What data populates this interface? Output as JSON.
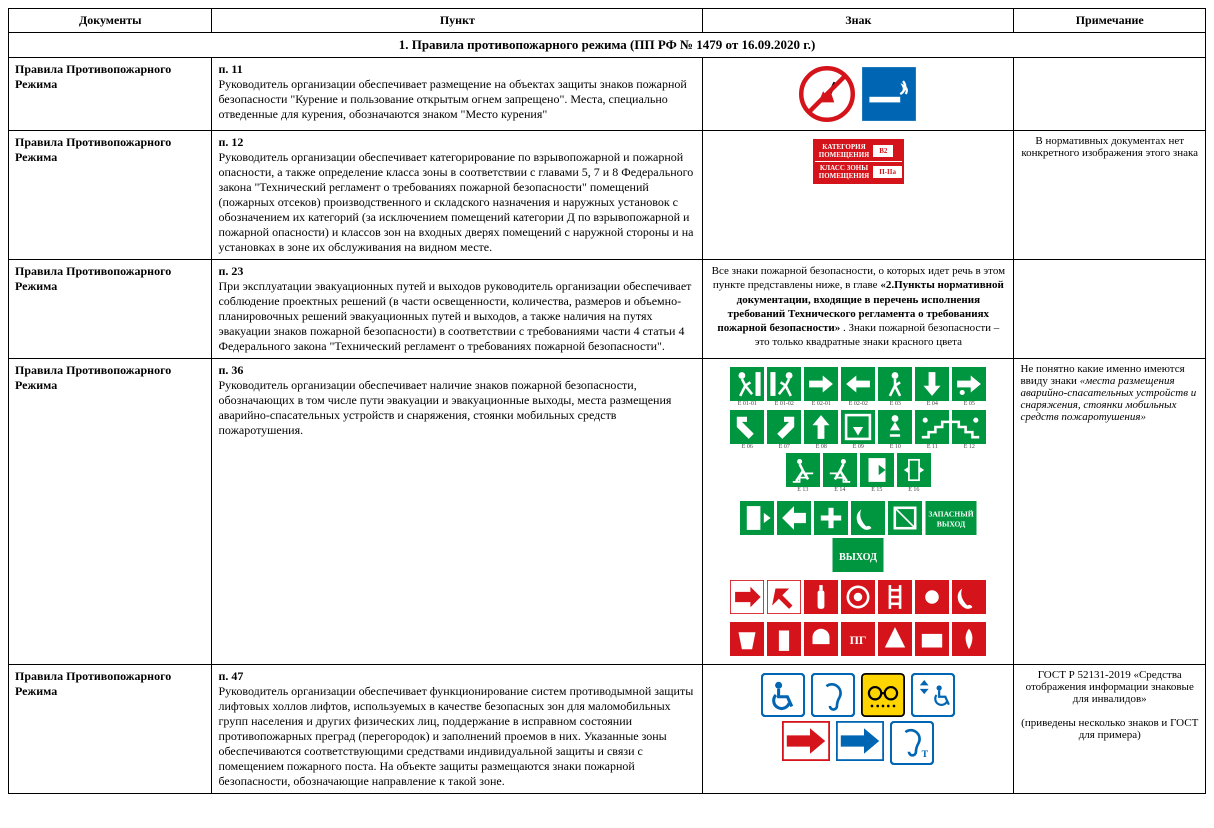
{
  "headers": {
    "documents": "Документы",
    "punkt": "Пункт",
    "znak": "Знак",
    "note": "Примечание"
  },
  "section_title": "1.  Правила противопожарного режима (ПП РФ № 1479 от 16.09.2020 г.)",
  "colors": {
    "green": "#009640",
    "red": "#d4141a",
    "blue": "#0066b3",
    "yellow": "#ffd500",
    "white": "#ffffff",
    "black": "#000000"
  },
  "rows": [
    {
      "doc": "Правила Противопожарного Режима",
      "punkt_num": "п. 11",
      "punkt_text": "Руководитель организации обеспечивает размещение на объектах защиты знаков пожарной безопасности \"Курение и пользование открытым огнем запрещено\". Места, специально отведенные для курения, обозначаются знаком \"Место курения\"",
      "note": ""
    },
    {
      "doc": "Правила Противопожарного Режима",
      "punkt_num": "п. 12",
      "punkt_text": "Руководитель организации обеспечивает категорирование по взрывопожарной и пожарной опасности, а также определение класса зоны в соответствии с главами 5, 7 и 8 Федерального закона \"Технический регламент о требованиях пожарной безопасности\" помещений (пожарных отсеков) производственного и складского назначения и наружных установок с обозначением их категорий (за исключением помещений категории Д по взрывопожарной и пожарной опасности) и классов зон на входных дверях помещений с наружной стороны и на установках в зоне их обслуживания на видном месте.",
      "cat_sign": {
        "l1": "КАТЕГОРИЯ",
        "l1b": "ПОМЕЩЕНИЯ",
        "v1": "В2",
        "l2": "КЛАСС ЗОНЫ",
        "l2b": "ПОМЕЩЕНИЯ",
        "v2": "П-IIа"
      },
      "note": "В нормативных документах нет конкретного изображения этого знака"
    },
    {
      "doc": "Правила Противопожарного Режима",
      "punkt_num": "п. 23",
      "punkt_text": "При эксплуатации эвакуационных путей и выходов руководитель организации обеспечивает соблюдение проектных решений (в части освещенности, количества, размеров и объемно-планировочных решений эвакуационных путей и выходов, а также наличия на путях эвакуации знаков пожарной безопасности) в соответствии с требованиями части 4 статьи 4 Федерального закона \"Технический регламент о требованиях пожарной безопасности\".",
      "znak_text_pre": "Все знаки пожарной безопасности, о которых идет речь в этом пункте представлены ниже, в главе ",
      "znak_text_bold": "«2.Пункты нормативной документации, входящие в перечень исполнения требований Технического регламента о требованиях пожарной безопасности»",
      "znak_text_post": ". Знаки пожарной безопасности – это только квадратные знаки красного цвета",
      "note": ""
    },
    {
      "doc": "Правила Противопожарного Режима",
      "punkt_num": "п. 36",
      "punkt_text": "Руководитель организации обеспечивает наличие знаков пожарной безопасности, обозначающих в том числе пути эвакуации и эвакуационные выходы, места размещения аварийно-спасательных устройств и снаряжения, стоянки мобильных средств пожаротушения.",
      "evac_labels": [
        "Е 01-01",
        "Е 01-02",
        "Е 02-01",
        "Е 02-02",
        "Е 03",
        "Е 04",
        "Е 05",
        "Е 06",
        "Е 07",
        "Е 08",
        "Е 09",
        "Е 10",
        "Е 11",
        "Е 12",
        "Е 13",
        "Е 14",
        "Е 15",
        "Е 16"
      ],
      "exit_text": "ВЫХОД",
      "spare_text": "ЗАПАСНЫЙ",
      "note_pre": "Не понятно какие именно имеются ввиду знаки ",
      "note_italic": "«места размещения аварийно-спасательных устройств и снаряжения, стоянки мобильных средств пожаротушения»"
    },
    {
      "doc": "Правила Противопожарного Режима",
      "punkt_num": "п. 47",
      "punkt_text": "Руководитель организации обеспечивает функционирование систем противодымной защиты лифтовых холлов лифтов, используемых в качестве безопасных зон для маломобильных групп населения и других физических лиц, поддержание в исправном состоянии противопожарных преград (перегородок) и заполнений проемов в них. Указанные зоны обеспечиваются соответствующими средствами индивидуальной защиты и связи с помещением пожарного поста. На объекте защиты размещаются знаки пожарной безопасности, обозначающие направление к такой зоне.",
      "note_l1": "ГОСТ Р 52131-2019 «Средства отображения информации знаковые для инвалидов»",
      "note_l2": "(приведены несколько знаков и ГОСТ для примера)"
    }
  ]
}
